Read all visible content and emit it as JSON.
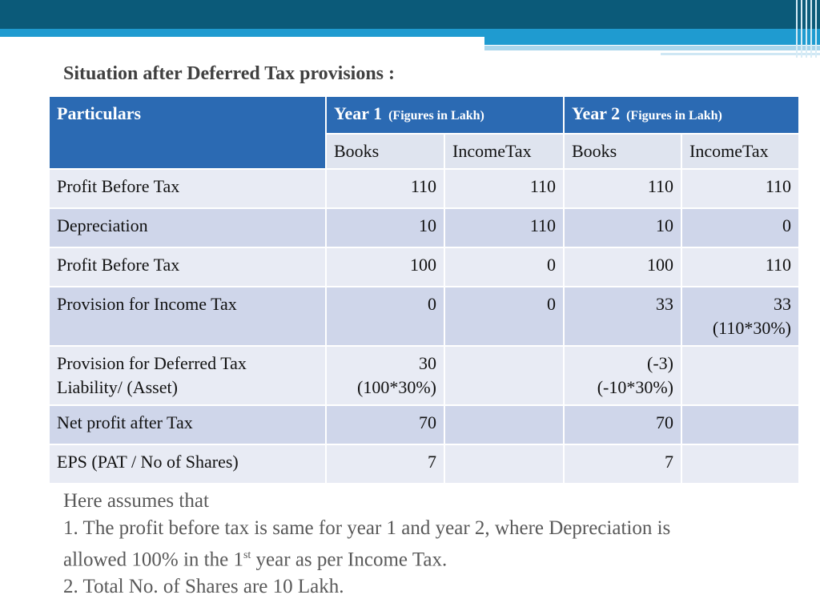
{
  "title": "Situation after Deferred Tax provisions :",
  "table": {
    "col_particulars": "Particulars",
    "year1": {
      "label": "Year 1",
      "note": "(Figures in Lakh)"
    },
    "year2": {
      "label": "Year 2",
      "note": "(Figures in Lakh)"
    },
    "sub": {
      "books": "Books",
      "income_tax": "IncomeTax"
    },
    "rows": [
      {
        "label": "Profit Before Tax",
        "y1_books": "110",
        "y1_tax": "110",
        "y2_books": "110",
        "y2_tax": "110"
      },
      {
        "label": "Depreciation",
        "y1_books": "10",
        "y1_tax": "110",
        "y2_books": "10",
        "y2_tax": "0"
      },
      {
        "label": "Profit Before Tax",
        "y1_books": "100",
        "y1_tax": "0",
        "y2_books": "100",
        "y2_tax": "110"
      },
      {
        "label": "Provision for Income Tax",
        "y1_books": "0",
        "y1_tax": "0",
        "y2_books": "33",
        "y2_tax": "33",
        "y2_tax_sub": "(110*30%)"
      },
      {
        "label_line1": "Provision for Deferred Tax",
        "label_line2": "Liability/ (Asset)",
        "y1_books": "30",
        "y1_books_sub": "(100*30%)",
        "y1_tax": "",
        "y2_books": "(-3)",
        "y2_books_sub": "(-10*30%)",
        "y2_tax": ""
      },
      {
        "label": "Net profit after Tax",
        "y1_books": "70",
        "y1_tax": "",
        "y2_books": "70",
        "y2_tax": ""
      },
      {
        "label": "EPS (PAT / No of Shares)",
        "y1_books": "7",
        "y1_tax": "",
        "y2_books": "7",
        "y2_tax": ""
      }
    ]
  },
  "notes": {
    "intro": "Here assumes that",
    "item1_a": "1. The profit before tax is same for year 1 and year 2, where Depreciation is",
    "item1_b": "allowed 100% in the 1",
    "item1_sup": "st",
    "item1_c": " year as per Income Tax.",
    "item2": "2. Total No. of Shares are 10 Lakh."
  },
  "colors": {
    "header": "#2b6ab3",
    "band_dark": "#0b5a79",
    "band_blue": "#1f9bd0",
    "row_light": "#e8ebf4",
    "row_mid": "#cfd6ea"
  }
}
